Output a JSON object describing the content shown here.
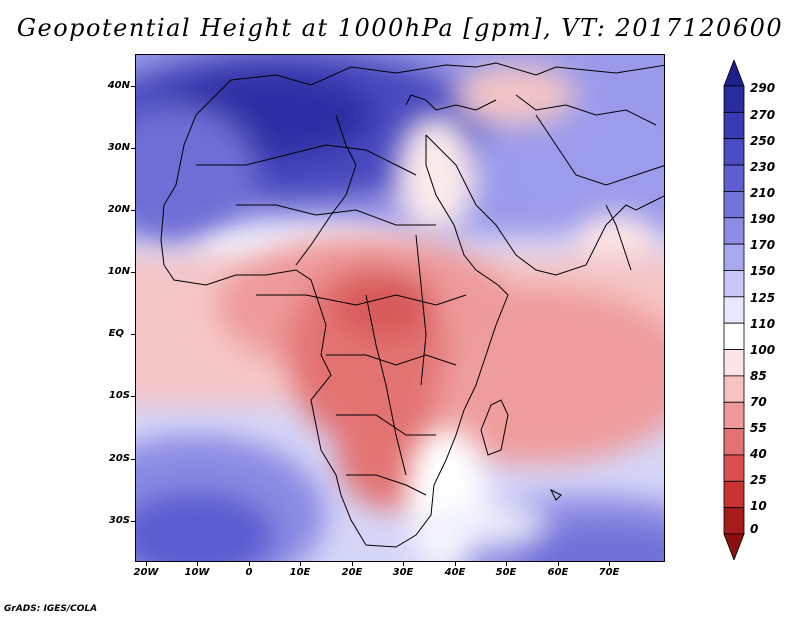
{
  "title": "Geopotential Height at 1000hPa [gpm], VT: 2017120600",
  "credit": "GrADS: IGES/COLA",
  "map": {
    "lat_labels": [
      "40N",
      "30N",
      "20N",
      "10N",
      "EQ",
      "10S",
      "20S",
      "30S"
    ],
    "lon_labels": [
      "20W",
      "10W",
      "0",
      "10E",
      "20E",
      "30E",
      "40E",
      "50E",
      "60E",
      "70E"
    ],
    "lat_range": [
      -37,
      45
    ],
    "lon_range": [
      -23,
      80
    ]
  },
  "colorbar": {
    "levels": [
      "290",
      "270",
      "250",
      "230",
      "210",
      "190",
      "170",
      "150",
      "125",
      "110",
      "100",
      "85",
      "70",
      "55",
      "40",
      "25",
      "10",
      "0"
    ],
    "colors": [
      "#1e1e8c",
      "#2b2ba0",
      "#3a3ab4",
      "#4b4bc4",
      "#5e5ed2",
      "#7373dc",
      "#8c8ce6",
      "#a8a8ee",
      "#c8c8f6",
      "#e8e8fc",
      "#ffffff",
      "#fde4e4",
      "#f7c2c2",
      "#ee9a9a",
      "#e37373",
      "#d84f4f",
      "#c83333",
      "#a51c1c",
      "#8c1010"
    ]
  }
}
